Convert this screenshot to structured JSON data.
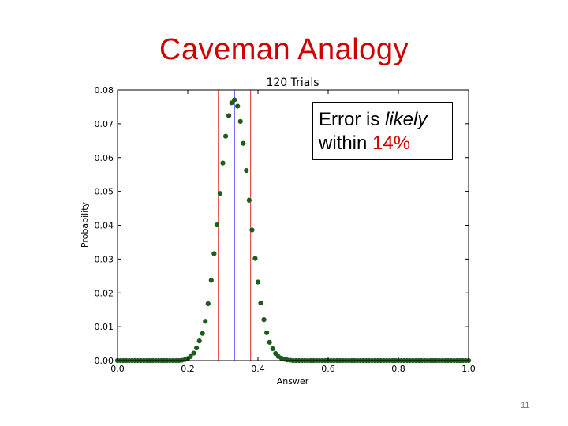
{
  "slide": {
    "title": "Caveman Analogy",
    "page_number": "11"
  },
  "callout": {
    "text_before": "Error is ",
    "text_italic": "likely",
    "text_line2": "within ",
    "text_pct": "14%"
  },
  "colors": {
    "title": "#d00000",
    "points": "#1a5e1a",
    "mean_line": "#3333ff",
    "bound_lines": "#e03030"
  },
  "chart_data": {
    "type": "scatter",
    "title": "120 Trials",
    "xlabel": "Answer",
    "ylabel": "Probability",
    "xlim": [
      0.0,
      1.0
    ],
    "ylim": [
      0.0,
      0.08
    ],
    "x_ticks": [
      "0.0",
      "0.2",
      "0.4",
      "0.6",
      "0.8",
      "1.0"
    ],
    "y_ticks": [
      "0.00",
      "0.01",
      "0.02",
      "0.03",
      "0.04",
      "0.05",
      "0.06",
      "0.07",
      "0.08"
    ],
    "vertical_lines": [
      {
        "x": 0.333,
        "role": "mean",
        "color": "#3333ff"
      },
      {
        "x": 0.287,
        "role": "lower-bound",
        "color": "#e03030"
      },
      {
        "x": 0.379,
        "role": "upper-bound",
        "color": "#e03030"
      }
    ],
    "trials": 120,
    "points": [
      [
        0.183,
        0.0001
      ],
      [
        0.192,
        0.0003
      ],
      [
        0.2,
        0.0006
      ],
      [
        0.208,
        0.0012
      ],
      [
        0.217,
        0.0022
      ],
      [
        0.225,
        0.0037
      ],
      [
        0.233,
        0.0058
      ],
      [
        0.242,
        0.008
      ],
      [
        0.25,
        0.0116
      ],
      [
        0.258,
        0.0168
      ],
      [
        0.267,
        0.0237
      ],
      [
        0.275,
        0.0316
      ],
      [
        0.283,
        0.0401
      ],
      [
        0.292,
        0.0494
      ],
      [
        0.3,
        0.0584
      ],
      [
        0.308,
        0.0663
      ],
      [
        0.317,
        0.0724
      ],
      [
        0.325,
        0.0762
      ],
      [
        0.333,
        0.0771
      ],
      [
        0.342,
        0.0752
      ],
      [
        0.35,
        0.0707
      ],
      [
        0.358,
        0.0642
      ],
      [
        0.367,
        0.0562
      ],
      [
        0.375,
        0.0474
      ],
      [
        0.383,
        0.0386
      ],
      [
        0.392,
        0.0302
      ],
      [
        0.4,
        0.0232
      ],
      [
        0.408,
        0.017
      ],
      [
        0.417,
        0.0121
      ],
      [
        0.425,
        0.0082
      ],
      [
        0.433,
        0.0054
      ],
      [
        0.442,
        0.0035
      ],
      [
        0.45,
        0.0021
      ],
      [
        0.458,
        0.0012
      ],
      [
        0.467,
        0.0007
      ],
      [
        0.475,
        0.0004
      ],
      [
        0.483,
        0.0002
      ],
      [
        0.492,
        0.0001
      ]
    ],
    "zero_point_step": 0.008333
  }
}
